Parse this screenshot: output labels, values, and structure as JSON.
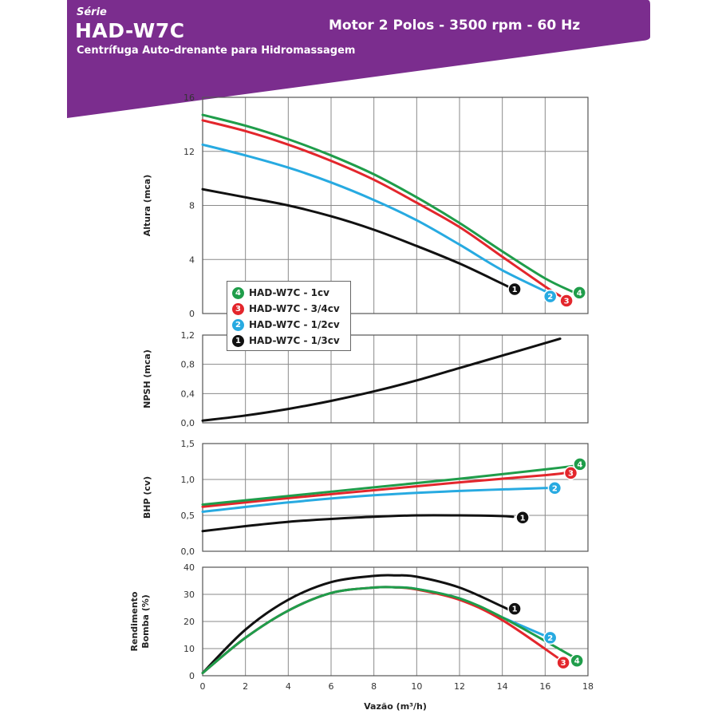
{
  "header": {
    "serie": "Série",
    "model": "HAD-W7C",
    "subtitle": "Centrífuga Auto-drenante para Hidromassagem",
    "motor": "Motor 2 Polos - 3500 rpm - 60 Hz",
    "banner_color": "#7b2d8e"
  },
  "chart_data": {
    "type": "line",
    "xlabel": "Vazão (m³/h)",
    "xlim": [
      0,
      18
    ],
    "xticks": [
      "0",
      "2",
      "4",
      "6",
      "8",
      "10",
      "12",
      "14",
      "16",
      "18"
    ],
    "series_legend": [
      {
        "id": "4",
        "name": "HAD-W7C - 1cv",
        "color": "#1f9d4a"
      },
      {
        "id": "3",
        "name": "HAD-W7C - 3/4cv",
        "color": "#e3262c"
      },
      {
        "id": "2",
        "name": "HAD-W7C - 1/2cv",
        "color": "#27aae1"
      },
      {
        "id": "1",
        "name": "HAD-W7C - 1/3cv",
        "color": "#111111"
      }
    ],
    "panels": [
      {
        "key": "altura",
        "ylabel": "Altura (mca)",
        "ylim": [
          0,
          16
        ],
        "yticks": [
          "0",
          "4",
          "8",
          "12",
          "16"
        ],
        "series": [
          {
            "id": "4",
            "x": [
              0,
              2,
              4,
              6,
              8,
              10,
              12,
              14,
              16,
              17.3
            ],
            "y": [
              14.7,
              13.9,
              12.9,
              11.7,
              10.3,
              8.6,
              6.7,
              4.6,
              2.6,
              1.6
            ]
          },
          {
            "id": "3",
            "x": [
              0,
              2,
              4,
              6,
              8,
              10,
              12,
              14,
              16,
              16.7
            ],
            "y": [
              14.3,
              13.5,
              12.5,
              11.3,
              9.9,
              8.2,
              6.4,
              4.2,
              2.0,
              1.3
            ]
          },
          {
            "id": "2",
            "x": [
              0,
              2,
              4,
              6,
              8,
              10,
              12,
              14,
              16.2
            ],
            "y": [
              12.5,
              11.7,
              10.8,
              9.7,
              8.4,
              6.9,
              5.1,
              3.2,
              1.5
            ]
          },
          {
            "id": "1",
            "x": [
              0,
              2,
              4,
              6,
              8,
              10,
              12,
              14,
              14.5
            ],
            "y": [
              9.2,
              8.6,
              8.0,
              7.2,
              6.2,
              5.0,
              3.7,
              2.2,
              1.8
            ]
          }
        ]
      },
      {
        "key": "npsh",
        "ylabel": "NPSH (mca)",
        "ylim": [
          0,
          1.2
        ],
        "yticks": [
          "0,0",
          "0,4",
          "0,8",
          "1,2"
        ],
        "series": [
          {
            "id": "all",
            "x": [
              0,
              2,
              4,
              6,
              8,
              10,
              12,
              14,
              16,
              16.7
            ],
            "y": [
              0.03,
              0.1,
              0.19,
              0.3,
              0.43,
              0.58,
              0.75,
              0.92,
              1.09,
              1.15
            ]
          }
        ]
      },
      {
        "key": "bhp",
        "ylabel": "BHP (cv)",
        "ylim": [
          0,
          1.5
        ],
        "yticks": [
          "0,0",
          "0,5",
          "1,0",
          "1,5"
        ],
        "series": [
          {
            "id": "4",
            "x": [
              0,
              4,
              8,
              12,
              16,
              17.4
            ],
            "y": [
              0.65,
              0.77,
              0.89,
              1.01,
              1.14,
              1.19
            ]
          },
          {
            "id": "3",
            "x": [
              0,
              4,
              8,
              12,
              16,
              16.9
            ],
            "y": [
              0.62,
              0.74,
              0.85,
              0.96,
              1.06,
              1.09
            ]
          },
          {
            "id": "2",
            "x": [
              0,
              4,
              8,
              12,
              16,
              16.3
            ],
            "y": [
              0.55,
              0.68,
              0.78,
              0.84,
              0.88,
              0.88
            ]
          },
          {
            "id": "1",
            "x": [
              0,
              2,
              4,
              6,
              8,
              10,
              12,
              14,
              14.5
            ],
            "y": [
              0.28,
              0.35,
              0.41,
              0.45,
              0.48,
              0.5,
              0.5,
              0.49,
              0.48
            ]
          }
        ]
      },
      {
        "key": "rendimento",
        "ylabel": "Rendimento Bomba (%)",
        "ylim": [
          0,
          40
        ],
        "yticks": [
          "0",
          "10",
          "20",
          "30",
          "40"
        ],
        "series": [
          {
            "id": "1",
            "x": [
              0,
              2,
              4,
              6,
              8,
              9,
              10,
              12,
              14,
              14.5
            ],
            "y": [
              1,
              17,
              28,
              34.5,
              36.8,
              37,
              36.5,
              32.5,
              25.5,
              23.5
            ]
          },
          {
            "id": "2",
            "x": [
              0,
              2,
              4,
              6,
              8,
              9,
              10,
              12,
              14,
              16.2
            ],
            "y": [
              1,
              14,
              24,
              30.5,
              32.5,
              32.6,
              32,
              28.5,
              21.5,
              14
            ]
          },
          {
            "id": "3",
            "x": [
              0,
              2,
              4,
              6,
              8,
              9,
              10,
              12,
              14,
              16.7
            ],
            "y": [
              1,
              14,
              24,
              30.5,
              32.5,
              32.6,
              31.8,
              28,
              20.5,
              6
            ]
          },
          {
            "id": "4",
            "x": [
              0,
              2,
              4,
              6,
              8,
              9,
              10,
              12,
              14,
              17.3
            ],
            "y": [
              1,
              14,
              24,
              30.5,
              32.5,
              32.6,
              32,
              28.5,
              21.5,
              7
            ]
          }
        ]
      }
    ]
  }
}
